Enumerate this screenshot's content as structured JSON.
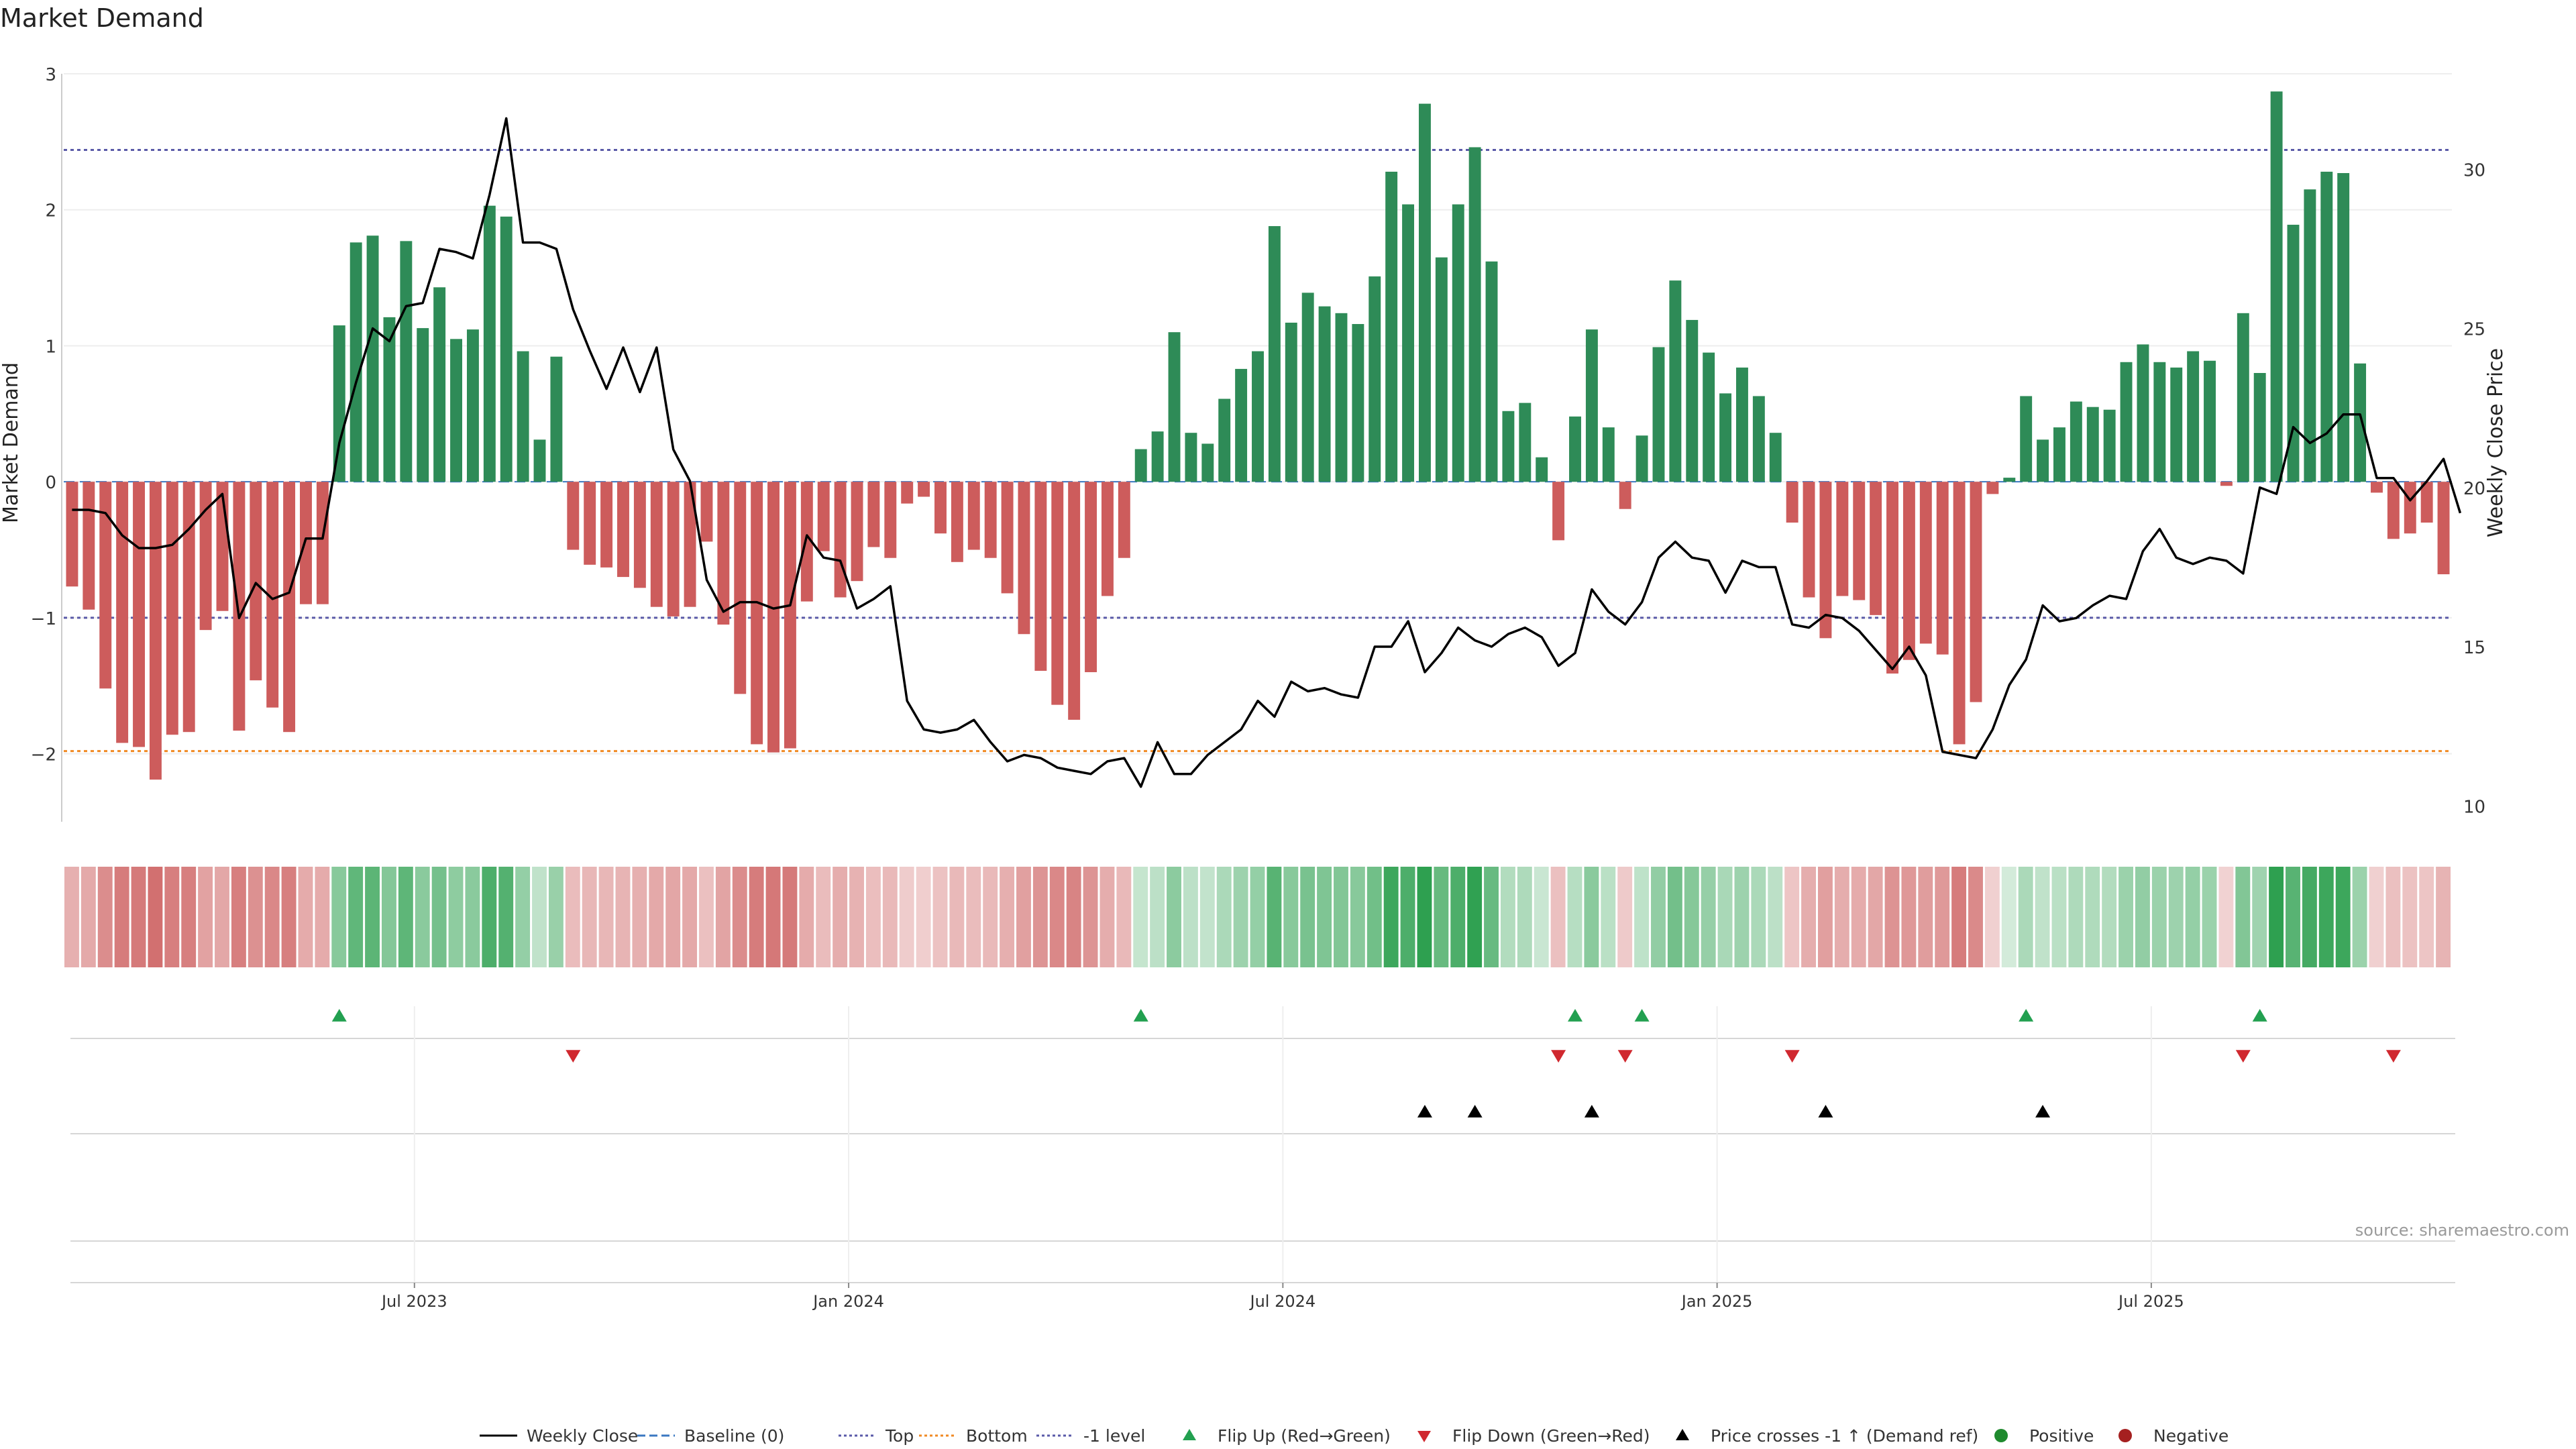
{
  "chart_data": {
    "type": "bar+line",
    "title": "Market Demand",
    "ylabel_left": "Market Demand",
    "ylabel_right": "Weekly Close Price",
    "left_ylim": [
      -2.5,
      3
    ],
    "left_ticks": [
      -2,
      -1,
      0,
      1,
      2,
      3
    ],
    "left_tick_labels": [
      "−2",
      "−1",
      "0",
      "1",
      "2",
      "3"
    ],
    "right_ylim": [
      9.5,
      33
    ],
    "right_ticks": [
      10,
      15,
      20,
      25,
      30
    ],
    "right_tick_labels": [
      "10",
      "15",
      "20",
      "25",
      "30"
    ],
    "x_tick_indices": [
      21,
      47,
      73,
      99,
      125
    ],
    "x_tick_labels": [
      "Jul 2023",
      "Jan 2024",
      "Jul 2024",
      "Jan 2025",
      "Jul 2025"
    ],
    "reference_lines": [
      {
        "name": "Top",
        "value": 2.44,
        "color": "#5a5aa8"
      },
      {
        "name": "-1 level",
        "value": -1.0,
        "color": "#5a5aa8"
      },
      {
        "name": "Bottom",
        "value": -1.98,
        "color": "#f08a24"
      },
      {
        "name": "Baseline (0)",
        "value": 0,
        "color": "#3b78c2"
      }
    ],
    "demand": [
      -0.77,
      -0.94,
      -1.52,
      -1.92,
      -1.95,
      -2.19,
      -1.86,
      -1.84,
      -1.09,
      -0.95,
      -1.83,
      -1.46,
      -1.66,
      -1.84,
      -0.9,
      -0.9,
      1.15,
      1.76,
      1.81,
      1.21,
      1.77,
      1.13,
      1.43,
      1.05,
      1.12,
      2.03,
      1.95,
      0.96,
      0.31,
      0.92,
      -0.5,
      -0.61,
      -0.63,
      -0.7,
      -0.78,
      -0.92,
      -0.99,
      -0.92,
      -0.44,
      -1.05,
      -1.56,
      -1.93,
      -1.99,
      -1.96,
      -0.88,
      -0.51,
      -0.85,
      -0.73,
      -0.48,
      -0.56,
      -0.16,
      -0.11,
      -0.38,
      -0.59,
      -0.5,
      -0.56,
      -0.82,
      -1.12,
      -1.39,
      -1.64,
      -1.75,
      -1.4,
      -0.84,
      -0.56,
      0.24,
      0.37,
      1.1,
      0.36,
      0.28,
      0.61,
      0.83,
      0.96,
      1.88,
      1.17,
      1.39,
      1.29,
      1.24,
      1.16,
      1.51,
      2.28,
      2.04,
      2.78,
      1.65,
      2.04,
      2.46,
      1.62,
      0.52,
      0.58,
      0.18,
      -0.43,
      0.48,
      1.12,
      0.4,
      -0.2,
      0.34,
      0.99,
      1.48,
      1.19,
      0.95,
      0.65,
      0.84,
      0.63,
      0.36,
      -0.3,
      -0.85,
      -1.15,
      -0.84,
      -0.87,
      -0.98,
      -1.41,
      -1.31,
      -1.19,
      -1.27,
      -1.93,
      -1.62,
      -0.09,
      0.03,
      0.63,
      0.31,
      0.4,
      0.59,
      0.55,
      0.53,
      0.88,
      1.01,
      0.88,
      0.84,
      0.96,
      0.89,
      -0.03,
      1.24,
      0.8,
      2.87,
      1.89,
      2.15,
      2.28,
      2.27,
      0.87,
      -0.08,
      -0.42,
      -0.38,
      -0.3,
      -0.68
    ],
    "price": [
      19.3,
      19.3,
      19.2,
      18.5,
      18.1,
      18.1,
      18.2,
      18.7,
      19.3,
      19.8,
      15.9,
      17.0,
      16.5,
      16.7,
      18.4,
      18.4,
      21.4,
      23.3,
      25.0,
      24.6,
      25.7,
      25.8,
      27.5,
      27.4,
      27.2,
      29.2,
      31.6,
      27.7,
      27.7,
      27.5,
      25.6,
      24.3,
      23.1,
      24.4,
      23.0,
      24.4,
      21.2,
      20.2,
      17.1,
      16.1,
      16.4,
      16.4,
      16.2,
      16.3,
      18.5,
      17.8,
      17.7,
      16.2,
      16.5,
      16.9,
      13.3,
      12.4,
      12.3,
      12.4,
      12.7,
      12.0,
      11.4,
      11.6,
      11.5,
      11.2,
      11.1,
      11.0,
      11.4,
      11.5,
      10.6,
      12.0,
      11.0,
      11.0,
      11.6,
      12.0,
      12.4,
      13.3,
      12.8,
      13.9,
      13.6,
      13.7,
      13.5,
      13.4,
      15.0,
      15.0,
      15.8,
      14.2,
      14.8,
      15.6,
      15.2,
      15.0,
      15.4,
      15.6,
      15.3,
      14.4,
      14.8,
      16.8,
      16.1,
      15.7,
      16.4,
      17.8,
      18.3,
      17.8,
      17.7,
      16.7,
      17.7,
      17.5,
      17.5,
      15.7,
      15.6,
      16.0,
      15.9,
      15.5,
      14.9,
      14.3,
      15.0,
      14.1,
      11.7,
      11.6,
      11.5,
      12.4,
      13.8,
      14.6,
      16.3,
      15.8,
      15.9,
      16.3,
      16.6,
      16.5,
      18.0,
      18.7,
      17.8,
      17.6,
      17.8,
      17.7,
      17.3,
      20.0,
      19.8,
      21.9,
      21.4,
      21.7,
      22.3,
      22.3,
      20.3,
      20.3,
      19.6,
      20.2,
      20.9,
      19.2
    ],
    "flip_up_indices": [
      16,
      64,
      90,
      94,
      117,
      131
    ],
    "flip_down_indices": [
      30,
      89,
      93,
      103,
      130,
      139
    ],
    "price_cross_indices": [
      81,
      84,
      91,
      105,
      118
    ],
    "legend": [
      {
        "label": "Weekly Close",
        "kind": "line",
        "color": "#000000"
      },
      {
        "label": "Baseline (0)",
        "kind": "dash",
        "color": "#3b78c2"
      },
      {
        "label": "Top",
        "kind": "dot",
        "color": "#5a5aa8"
      },
      {
        "label": "Bottom",
        "kind": "dot",
        "color": "#f08a24"
      },
      {
        "label": "-1 level",
        "kind": "dot",
        "color": "#5a5aa8"
      },
      {
        "label": "Flip Up (Red→Green)",
        "kind": "tri-up",
        "color": "#22a050"
      },
      {
        "label": "Flip Down (Green→Red)",
        "kind": "tri-down",
        "color": "#d0282f"
      },
      {
        "label": "Price crosses -1 ↑ (Demand ref)",
        "kind": "tri-up",
        "color": "#000000"
      },
      {
        "label": "Positive",
        "kind": "dot-circle",
        "color": "#1f8a2e"
      },
      {
        "label": "Negative",
        "kind": "dot-circle",
        "color": "#a52020"
      }
    ],
    "colors": {
      "positive": "#2e8b57",
      "negative": "#cd5c5c"
    }
  },
  "source": "source: sharemaestro.com"
}
